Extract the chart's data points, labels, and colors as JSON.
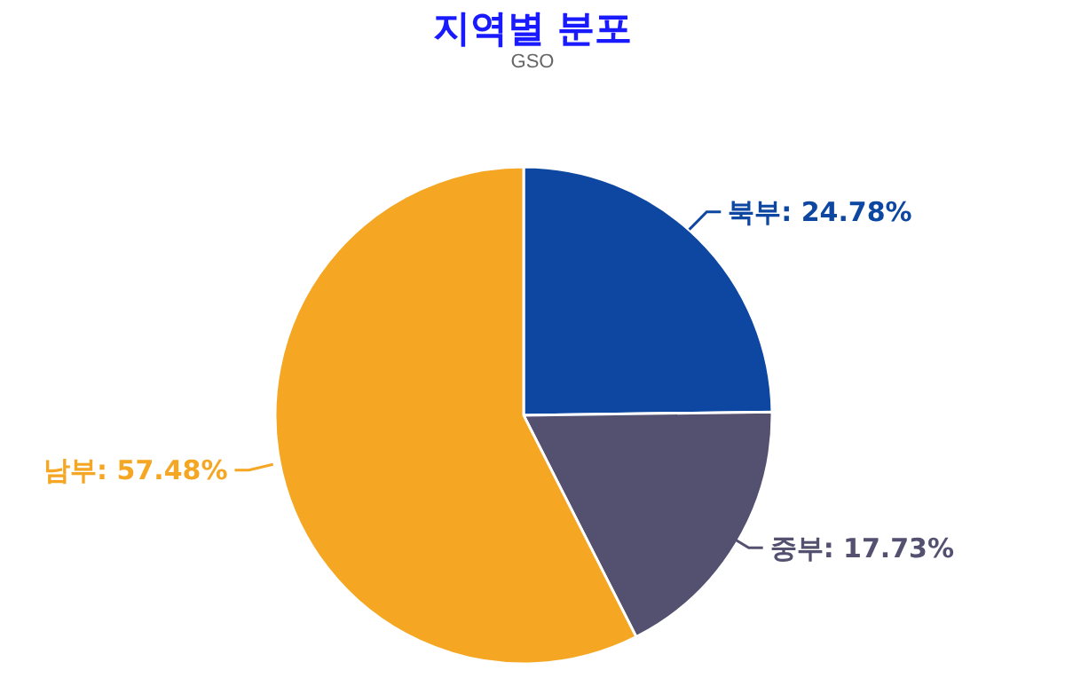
{
  "chart_data": {
    "type": "pie",
    "title": "지역별 분포",
    "subtitle": "GSO",
    "categories": [
      "북부",
      "중부",
      "남부"
    ],
    "values": [
      24.78,
      17.73,
      57.48
    ],
    "value_labels": [
      "24.78%",
      "17.73%",
      "57.48%"
    ],
    "colors": [
      "#0d47a1",
      "#545070",
      "#f5a623"
    ]
  }
}
